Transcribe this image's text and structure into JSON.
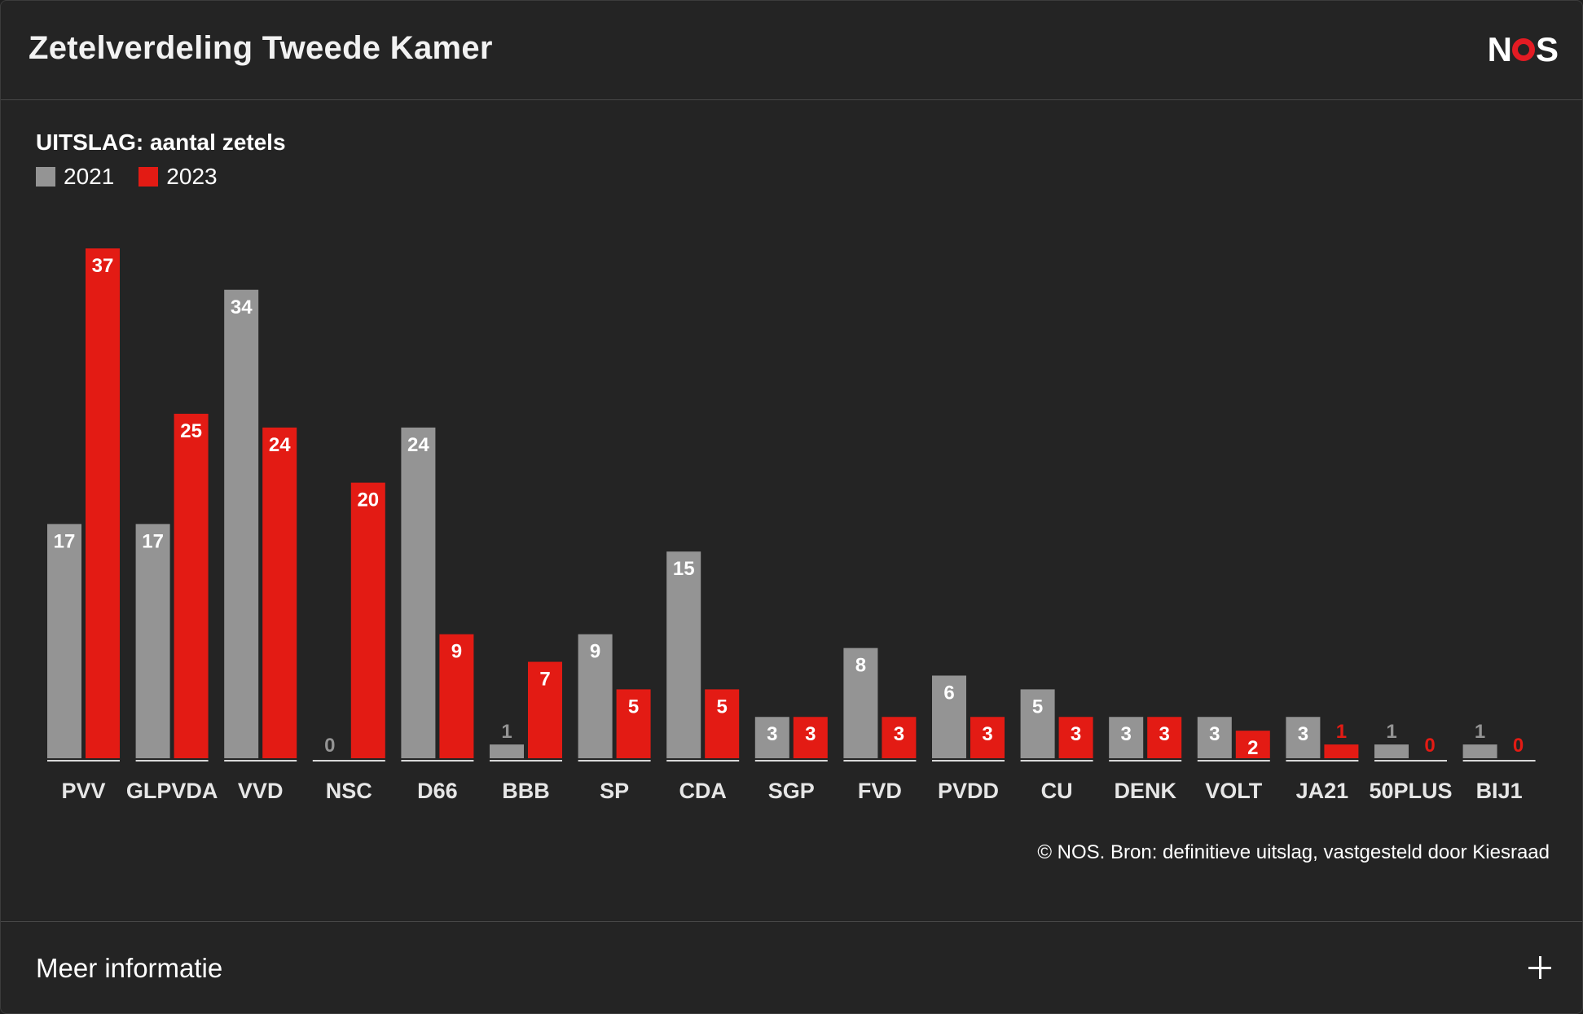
{
  "header": {
    "title": "Zetelverdeling Tweede Kamer",
    "logo": {
      "left": "N",
      "right": "S"
    }
  },
  "colors": {
    "c2021": "#949494",
    "c2023": "#e31b14",
    "background": "#242424"
  },
  "chart_data": {
    "type": "bar",
    "title": "UITSLAG: aantal zetels",
    "categories": [
      "PVV",
      "GLPVDA",
      "VVD",
      "NSC",
      "D66",
      "BBB",
      "SP",
      "CDA",
      "SGP",
      "FVD",
      "PVDD",
      "CU",
      "DENK",
      "VOLT",
      "JA21",
      "50PLUS",
      "BIJ1"
    ],
    "series": [
      {
        "name": "2021",
        "values": [
          17,
          17,
          34,
          0,
          24,
          1,
          9,
          15,
          3,
          8,
          6,
          5,
          3,
          3,
          3,
          1,
          1
        ]
      },
      {
        "name": "2023",
        "values": [
          37,
          25,
          24,
          20,
          9,
          7,
          5,
          5,
          3,
          3,
          3,
          3,
          3,
          2,
          1,
          0,
          0
        ]
      }
    ],
    "ylim": [
      0,
      37
    ],
    "legend": "top-left",
    "grid": false
  },
  "source": "© NOS. Bron: definitieve uitslag, vastgesteld door Kiesraad",
  "footer": {
    "label": "Meer informatie"
  }
}
